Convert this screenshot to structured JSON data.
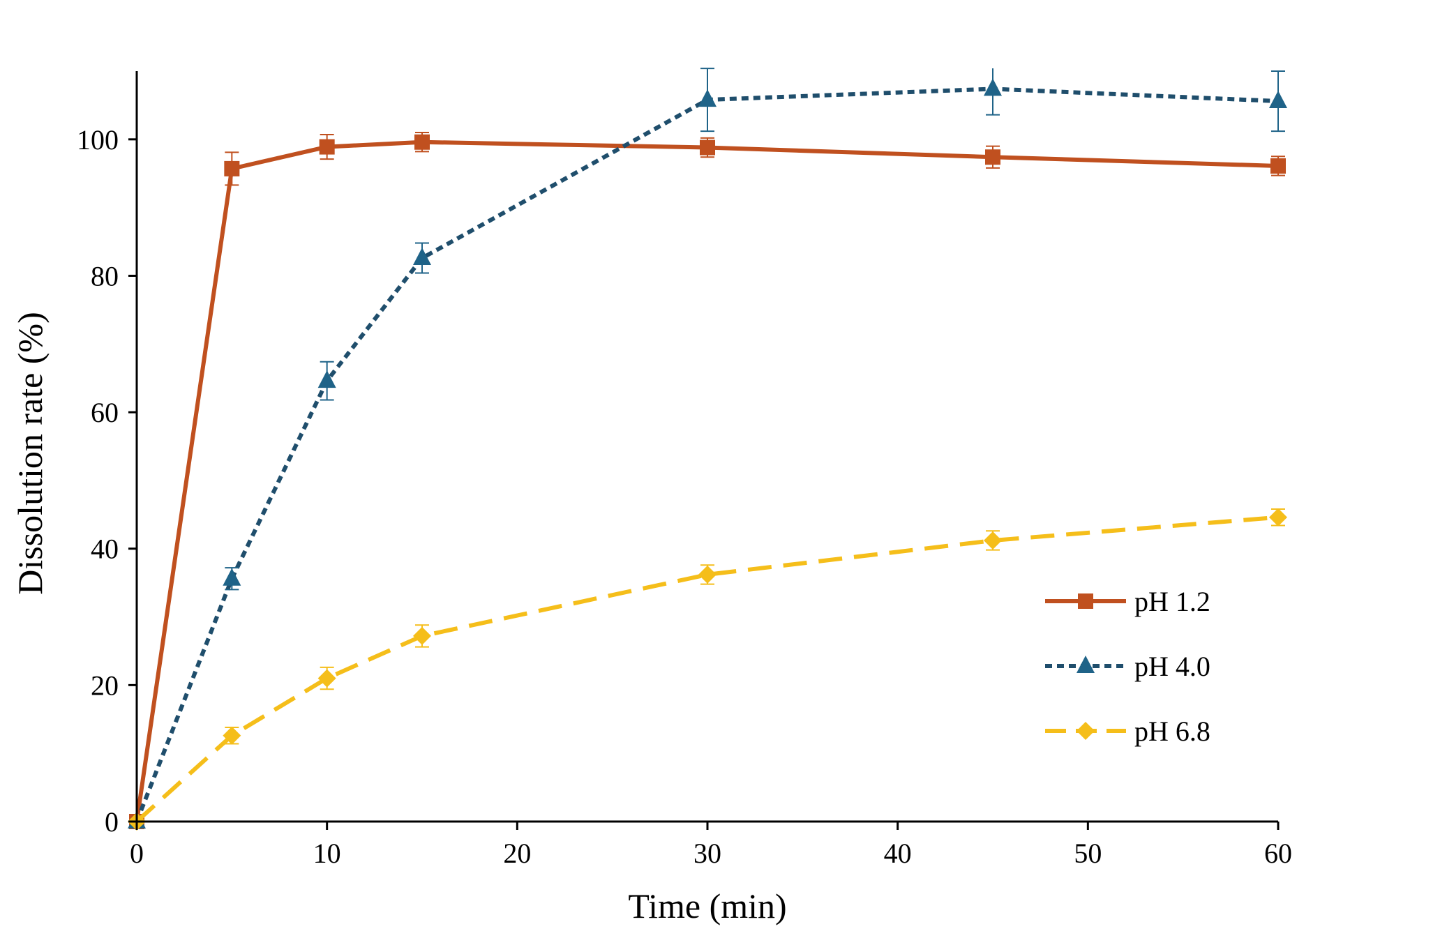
{
  "chart_data": {
    "type": "line",
    "title": "",
    "xlabel": "Time (min)",
    "ylabel": "Dissolution rate (%)",
    "xlim": [
      0,
      60
    ],
    "ylim": [
      0,
      110
    ],
    "x_ticks": [
      0,
      10,
      20,
      30,
      40,
      50,
      60
    ],
    "y_ticks": [
      0,
      20,
      40,
      60,
      80,
      100
    ],
    "grid": false,
    "legend_position": "right",
    "series": [
      {
        "name": "pH 1.2",
        "color": "#C0501F",
        "line_style": "solid",
        "marker": "square",
        "points": [
          {
            "x": 0,
            "y": 0,
            "err": 0
          },
          {
            "x": 5,
            "y": 95.7,
            "err": 2.4
          },
          {
            "x": 10,
            "y": 98.9,
            "err": 1.8
          },
          {
            "x": 15,
            "y": 99.6,
            "err": 1.4
          },
          {
            "x": 30,
            "y": 98.8,
            "err": 1.4
          },
          {
            "x": 45,
            "y": 97.4,
            "err": 1.6
          },
          {
            "x": 60,
            "y": 96.1,
            "err": 1.4
          }
        ]
      },
      {
        "name": "pH 4.0",
        "color": "#1F4E6C",
        "marker_color": "#1F6388",
        "line_style": "dotted",
        "marker": "triangle",
        "points": [
          {
            "x": 0,
            "y": 0,
            "err": 0
          },
          {
            "x": 5,
            "y": 35.6,
            "err": 1.6
          },
          {
            "x": 10,
            "y": 64.6,
            "err": 2.8
          },
          {
            "x": 15,
            "y": 82.6,
            "err": 2.2
          },
          {
            "x": 30,
            "y": 105.8,
            "err": 4.6
          },
          {
            "x": 45,
            "y": 107.4,
            "err": 3.8
          },
          {
            "x": 60,
            "y": 105.6,
            "err": 4.4
          }
        ]
      },
      {
        "name": "pH 6.8",
        "color": "#F5BE1A",
        "line_style": "dashed",
        "marker": "diamond",
        "points": [
          {
            "x": 0,
            "y": 0,
            "err": 0
          },
          {
            "x": 5,
            "y": 12.6,
            "err": 1.2
          },
          {
            "x": 10,
            "y": 21.0,
            "err": 1.6
          },
          {
            "x": 15,
            "y": 27.2,
            "err": 1.6
          },
          {
            "x": 30,
            "y": 36.2,
            "err": 1.4
          },
          {
            "x": 45,
            "y": 41.2,
            "err": 1.4
          },
          {
            "x": 60,
            "y": 44.6,
            "err": 1.2
          }
        ]
      }
    ]
  }
}
